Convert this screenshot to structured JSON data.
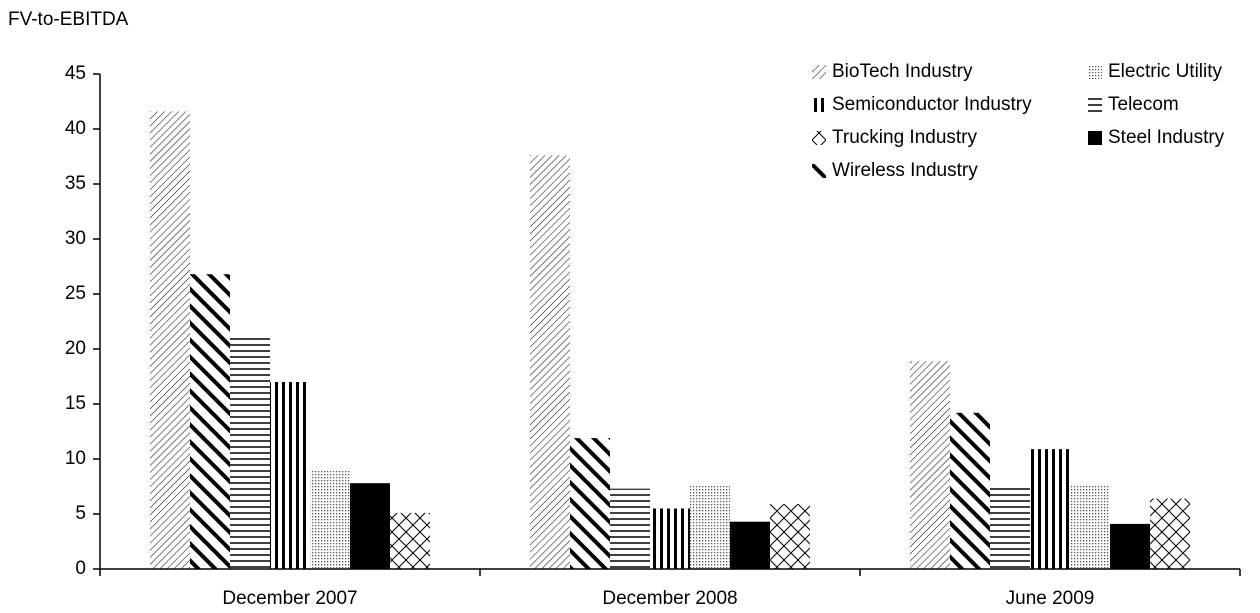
{
  "chart_data": {
    "type": "bar",
    "y_label": "FV-to-EBITDA",
    "categories": [
      "December 2007",
      "December 2008",
      "June 2009"
    ],
    "series": [
      {
        "name": "BioTech Industry",
        "color": "#000000",
        "pattern": "diag-thin",
        "values": [
          41.6,
          37.6,
          18.9
        ]
      },
      {
        "name": "Wireless Industry",
        "color": "#000000",
        "pattern": "diag-bold",
        "values": [
          26.8,
          11.9,
          14.2
        ]
      },
      {
        "name": "Telecom",
        "color": "#000000",
        "pattern": "horizontal",
        "values": [
          21,
          7.3,
          7.5
        ]
      },
      {
        "name": "Semiconductor Industry",
        "color": "#000000",
        "pattern": "vertical",
        "values": [
          17,
          5.5,
          10.9
        ]
      },
      {
        "name": "Electric Utility",
        "color": "#000000",
        "pattern": "dots",
        "values": [
          9,
          7.6,
          7.7
        ]
      },
      {
        "name": "Steel Industry",
        "color": "#000000",
        "pattern": "solid",
        "values": [
          7.8,
          4.3,
          4.1
        ]
      },
      {
        "name": "Trucking Industry",
        "color": "#000000",
        "pattern": "cross",
        "values": [
          5.1,
          5.9,
          6.4
        ]
      }
    ],
    "ylim": [
      0,
      45
    ],
    "yticks": [
      0,
      5,
      10,
      15,
      20,
      25,
      30,
      35,
      40,
      45
    ],
    "grid": false
  }
}
